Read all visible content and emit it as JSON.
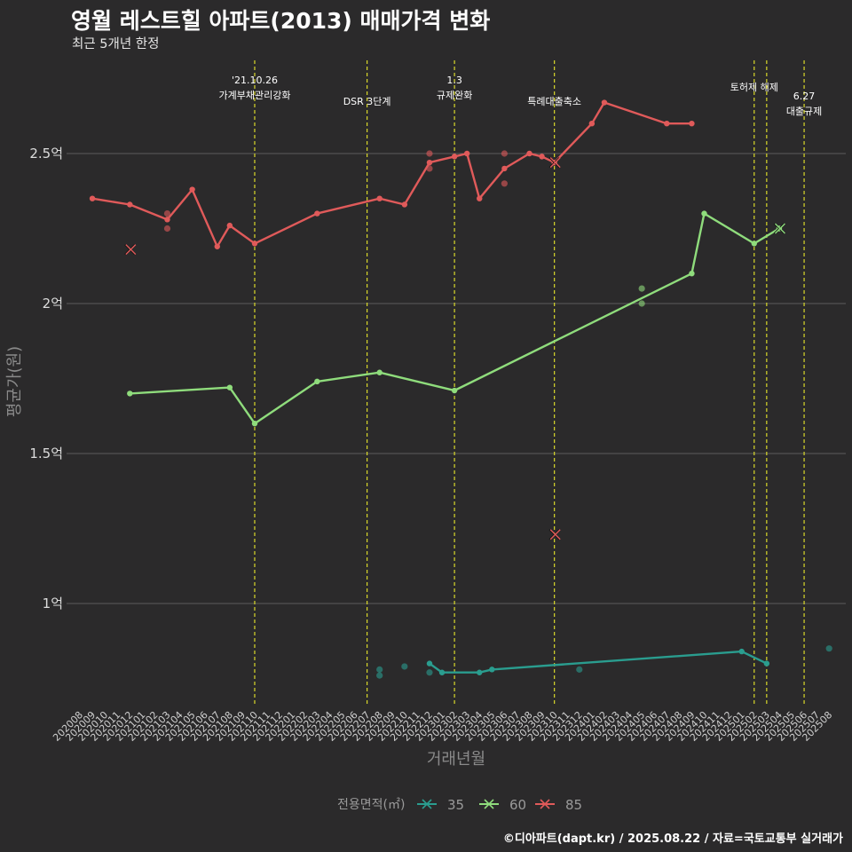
{
  "header": {
    "title": "영월 레스트힐 아파트(2013) 매매가격 변화",
    "subtitle": "최근 5개년 한정"
  },
  "caption": "©디아파트(dapt.kr) / 2025.08.22 / 자료=국토교통부 실거래가",
  "chart_data": {
    "type": "line",
    "title": "영월 레스트힐 아파트(2013) 매매가격 변화",
    "subtitle": "최근 5개년 한정",
    "xlabel": "거래년월",
    "ylabel": "평균가(원)",
    "categories": [
      "202008",
      "202009",
      "202010",
      "202011",
      "202012",
      "202101",
      "202102",
      "202103",
      "202104",
      "202105",
      "202106",
      "202107",
      "202108",
      "202109",
      "202110",
      "202111",
      "202112",
      "202201",
      "202202",
      "202203",
      "202204",
      "202205",
      "202206",
      "202207",
      "202208",
      "202209",
      "202210",
      "202211",
      "202212",
      "202301",
      "202302",
      "202303",
      "202304",
      "202305",
      "202306",
      "202307",
      "202308",
      "202309",
      "202310",
      "202311",
      "202312",
      "202401",
      "202402",
      "202403",
      "202404",
      "202405",
      "202406",
      "202407",
      "202408",
      "202409",
      "202410",
      "202411",
      "202412",
      "202501",
      "202502",
      "202503",
      "202504",
      "202505",
      "202506",
      "202507",
      "202508"
    ],
    "ylim": [
      0.72,
      2.73
    ],
    "y_ticks": [
      {
        "value": 1.0,
        "label": "1억"
      },
      {
        "value": 1.5,
        "label": "1.5억"
      },
      {
        "value": 2.0,
        "label": "2억"
      },
      {
        "value": 2.5,
        "label": "2.5억"
      }
    ],
    "grid": true,
    "legend": {
      "title": "전용면적(㎡)",
      "position": "bottom"
    },
    "annotations": [
      {
        "x": "202110",
        "lines": [
          "'21.10.26",
          "가계부채관리강화"
        ]
      },
      {
        "x": "202207",
        "lines": [
          "DSR 3단계"
        ]
      },
      {
        "x": "202302",
        "lines": [
          "1.3",
          "규제완화"
        ]
      },
      {
        "x": "202310",
        "lines": [
          "특례대출축소"
        ]
      },
      {
        "x": "202502",
        "lines": [
          "토허제 해제"
        ]
      },
      {
        "x": "202503",
        "lines": []
      },
      {
        "x": "202506",
        "lines": [
          "6.27",
          "대출규제"
        ]
      }
    ],
    "series": [
      {
        "name": "35",
        "color": "#2a9d8f",
        "line": [
          [
            "202212",
            0.8
          ],
          [
            "202301",
            0.77
          ],
          [
            "202304",
            0.77
          ],
          [
            "202305",
            0.78
          ],
          [
            "202501",
            0.84
          ],
          [
            "202503",
            0.8
          ]
        ],
        "points": [
          [
            "202208",
            0.76
          ],
          [
            "202208",
            0.78
          ],
          [
            "202210",
            0.79
          ],
          [
            "202212",
            0.77
          ],
          [
            "202312",
            0.78
          ],
          [
            "202508",
            0.85
          ]
        ],
        "cancelled": []
      },
      {
        "name": "60",
        "color": "#8fdc7c",
        "line": [
          [
            "202012",
            1.7
          ],
          [
            "202108",
            1.72
          ],
          [
            "202110",
            1.6
          ],
          [
            "202203",
            1.74
          ],
          [
            "202208",
            1.77
          ],
          [
            "202302",
            1.71
          ],
          [
            "202409",
            2.1
          ],
          [
            "202410",
            2.3
          ],
          [
            "202502",
            2.2
          ],
          [
            "202504",
            2.25
          ]
        ],
        "points": [
          [
            "202405",
            2.05
          ],
          [
            "202405",
            2.0
          ]
        ],
        "cancelled": [
          [
            "202504",
            2.25
          ]
        ]
      },
      {
        "name": "85",
        "color": "#e05a5a",
        "line": [
          [
            "202009",
            2.35
          ],
          [
            "202012",
            2.33
          ],
          [
            "202103",
            2.28
          ],
          [
            "202105",
            2.38
          ],
          [
            "202107",
            2.19
          ],
          [
            "202108",
            2.26
          ],
          [
            "202110",
            2.2
          ],
          [
            "202203",
            2.3
          ],
          [
            "202208",
            2.35
          ],
          [
            "202210",
            2.33
          ],
          [
            "202212",
            2.47
          ],
          [
            "202302",
            2.49
          ],
          [
            "202303",
            2.5
          ],
          [
            "202304",
            2.35
          ],
          [
            "202306",
            2.45
          ],
          [
            "202308",
            2.5
          ],
          [
            "202309",
            2.49
          ],
          [
            "202310",
            2.47
          ],
          [
            "202401",
            2.6
          ],
          [
            "202402",
            2.67
          ],
          [
            "202407",
            2.6
          ],
          [
            "202409",
            2.6
          ]
        ],
        "points": [
          [
            "202103",
            2.3
          ],
          [
            "202103",
            2.25
          ],
          [
            "202212",
            2.5
          ],
          [
            "202212",
            2.45
          ],
          [
            "202306",
            2.5
          ],
          [
            "202306",
            2.4
          ]
        ],
        "cancelled": [
          [
            "202012",
            2.18
          ],
          [
            "202310",
            2.47
          ],
          [
            "202310",
            1.23
          ]
        ]
      }
    ]
  }
}
